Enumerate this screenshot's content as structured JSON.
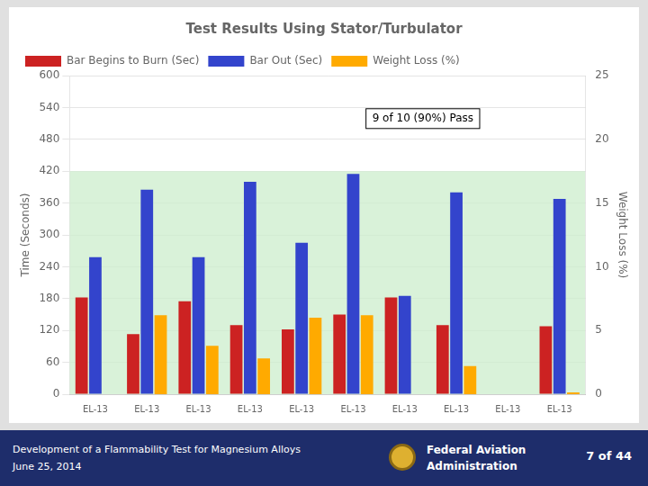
{
  "chart_data": {
    "type": "bar",
    "title": "Test Results Using Stator/Turbulator",
    "ylabel": "Time (Seconds)",
    "y2label": "Weight Loss (%)",
    "categories": [
      "EL-13",
      "EL-13",
      "EL-13",
      "EL-13",
      "EL-13",
      "EL-13",
      "EL-13",
      "EL-13",
      "EL-13",
      "EL-13"
    ],
    "series": [
      {
        "name": "Bar Begins to Burn (Sec)",
        "color": "#cc2222",
        "values": [
          182,
          113,
          175,
          130,
          122,
          150,
          182,
          130,
          0,
          128
        ]
      },
      {
        "name": "Bar Out (Sec)",
        "color": "#3344cc",
        "values": [
          258,
          385,
          258,
          400,
          285,
          415,
          185,
          380,
          0,
          368
        ]
      },
      {
        "name": "Weight Loss (%)",
        "color": "#ffaa00",
        "values": [
          0,
          6.2,
          3.8,
          2.8,
          6.0,
          6.2,
          0,
          2.2,
          0,
          0.15
        ],
        "axis": "y2"
      }
    ],
    "ylim": [
      0,
      600
    ],
    "yticks": [
      0,
      60,
      120,
      180,
      240,
      300,
      360,
      420,
      480,
      540,
      600
    ],
    "y2lim": [
      0,
      25
    ],
    "y2ticks": [
      0,
      5,
      10,
      15,
      20,
      25
    ],
    "grid": true,
    "legend": "upper left",
    "band": {
      "range": [
        0,
        420
      ],
      "color": "#cceecc"
    },
    "annotations": [
      "9 of 10 (90%) Pass"
    ],
    "footer": {
      "left": [
        "Development of a Flammability Test for Magnesium Alloys",
        "June 25, 2014"
      ],
      "right": "Federal Aviation\nAdministration",
      "page": "7 of 44"
    }
  }
}
